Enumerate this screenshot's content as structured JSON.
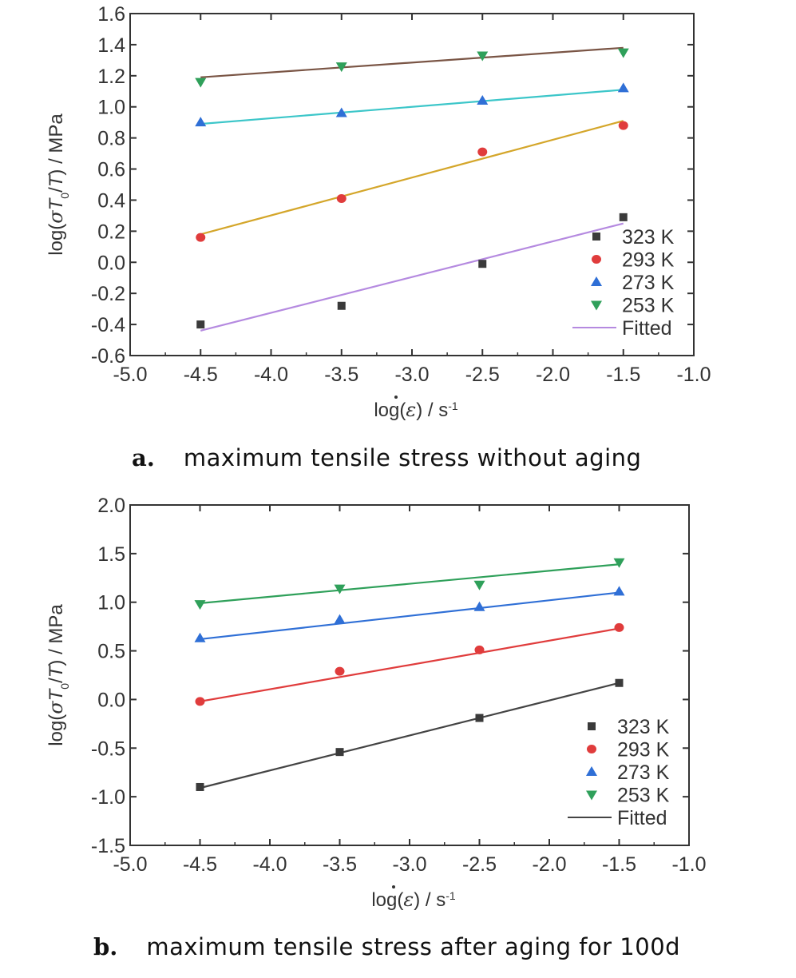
{
  "chart_data": [
    {
      "type": "scatter",
      "caption_letter": "a.",
      "caption": "maximum tensile stress without aging",
      "xlabel_parts": [
        "log(",
        "ε",
        ") / s",
        "-1"
      ],
      "ylabel_parts": [
        "log(",
        "σ",
        "T",
        "0",
        "/",
        "T",
        ") / MPa"
      ],
      "xlim": [
        -5.0,
        -1.0
      ],
      "ylim": [
        -0.6,
        1.6
      ],
      "xticks": [
        "-5.0",
        "-4.5",
        "-4.0",
        "-3.5",
        "-3.0",
        "-2.5",
        "-2.0",
        "-1.5",
        "-1.0"
      ],
      "xtick_values": [
        -5.0,
        -4.5,
        -4.0,
        -3.5,
        -3.0,
        -2.5,
        -2.0,
        -1.5,
        -1.0
      ],
      "yticks": [
        "-0.6",
        "-0.4",
        "-0.2",
        "0.0",
        "0.2",
        "0.4",
        "0.6",
        "0.8",
        "1.0",
        "1.2",
        "1.4",
        "1.6"
      ],
      "ytick_values": [
        -0.6,
        -0.4,
        -0.2,
        0.0,
        0.2,
        0.4,
        0.6,
        0.8,
        1.0,
        1.2,
        1.4,
        1.6
      ],
      "legend_position": "bottom-right",
      "series": [
        {
          "name": "323 K",
          "marker": "square",
          "color": "#3a3a3a",
          "line_color": "#b58ae0",
          "x": [
            -4.5,
            -3.5,
            -2.5,
            -1.5
          ],
          "y": [
            -0.4,
            -0.28,
            -0.01,
            0.29
          ],
          "fit": [
            [
              -4.5,
              -0.44
            ],
            [
              -1.5,
              0.25
            ]
          ]
        },
        {
          "name": "293 K",
          "marker": "circle",
          "color": "#e03c3c",
          "line_color": "#d4a62a",
          "x": [
            -4.5,
            -3.5,
            -2.5,
            -1.5
          ],
          "y": [
            0.16,
            0.41,
            0.71,
            0.88
          ],
          "fit": [
            [
              -4.5,
              0.18
            ],
            [
              -1.5,
              0.91
            ]
          ]
        },
        {
          "name": "273 K",
          "marker": "triangle-up",
          "color": "#2f6fd6",
          "line_color": "#3cc6c9",
          "x": [
            -4.5,
            -3.5,
            -2.5,
            -1.5
          ],
          "y": [
            0.9,
            0.96,
            1.04,
            1.12
          ],
          "fit": [
            [
              -4.5,
              0.89
            ],
            [
              -1.5,
              1.11
            ]
          ]
        },
        {
          "name": "253 K",
          "marker": "triangle-down",
          "color": "#2fa05a",
          "line_color": "#7a5545",
          "x": [
            -4.5,
            -3.5,
            -2.5,
            -1.5
          ],
          "y": [
            1.16,
            1.26,
            1.33,
            1.35
          ],
          "fit": [
            [
              -4.5,
              1.19
            ],
            [
              -1.5,
              1.38
            ]
          ]
        }
      ],
      "fitted_label": "Fitted",
      "fitted_legend_color": "#b58ae0"
    },
    {
      "type": "scatter",
      "caption_letter": "b.",
      "caption": "maximum tensile stress after aging for 100d",
      "xlabel_parts": [
        "log(",
        "ε",
        ") / s",
        "-1"
      ],
      "ylabel_parts": [
        "log(",
        "σ",
        "T",
        "0",
        "/",
        "T",
        ") / MPa"
      ],
      "xlim": [
        -5.0,
        -1.0
      ],
      "ylim": [
        -1.5,
        2.0
      ],
      "xticks": [
        "-5.0",
        "-4.5",
        "-4.0",
        "-3.5",
        "-3.0",
        "-2.5",
        "-2.0",
        "-1.5",
        "-1.0"
      ],
      "xtick_values": [
        -5.0,
        -4.5,
        -4.0,
        -3.5,
        -3.0,
        -2.5,
        -2.0,
        -1.5,
        -1.0
      ],
      "yticks": [
        "-1.5",
        "-1.0",
        "-0.5",
        "0.0",
        "0.5",
        "1.0",
        "1.5",
        "2.0"
      ],
      "ytick_values": [
        -1.5,
        -1.0,
        -0.5,
        0.0,
        0.5,
        1.0,
        1.5,
        2.0
      ],
      "legend_position": "bottom-right",
      "series": [
        {
          "name": "323 K",
          "marker": "square",
          "color": "#3a3a3a",
          "line_color": "#444444",
          "x": [
            -4.5,
            -3.5,
            -2.5,
            -1.5
          ],
          "y": [
            -0.9,
            -0.54,
            -0.19,
            0.17
          ],
          "fit": [
            [
              -4.5,
              -0.91
            ],
            [
              -1.5,
              0.17
            ]
          ]
        },
        {
          "name": "293 K",
          "marker": "circle",
          "color": "#e03c3c",
          "line_color": "#e03c3c",
          "x": [
            -4.5,
            -3.5,
            -2.5,
            -1.5
          ],
          "y": [
            -0.02,
            0.29,
            0.51,
            0.74
          ],
          "fit": [
            [
              -4.5,
              -0.02
            ],
            [
              -1.5,
              0.73
            ]
          ]
        },
        {
          "name": "273 K",
          "marker": "triangle-up",
          "color": "#2f6fd6",
          "line_color": "#2f6fd6",
          "x": [
            -4.5,
            -3.5,
            -2.5,
            -1.5
          ],
          "y": [
            0.63,
            0.82,
            0.95,
            1.11
          ],
          "fit": [
            [
              -4.5,
              0.62
            ],
            [
              -1.5,
              1.1
            ]
          ]
        },
        {
          "name": "253 K",
          "marker": "triangle-down",
          "color": "#2fa05a",
          "line_color": "#2fa05a",
          "x": [
            -4.5,
            -3.5,
            -2.5,
            -1.5
          ],
          "y": [
            0.98,
            1.14,
            1.18,
            1.41
          ],
          "fit": [
            [
              -4.5,
              0.99
            ],
            [
              -1.5,
              1.39
            ]
          ]
        }
      ],
      "fitted_label": "Fitted",
      "fitted_legend_color": "#444444"
    }
  ]
}
